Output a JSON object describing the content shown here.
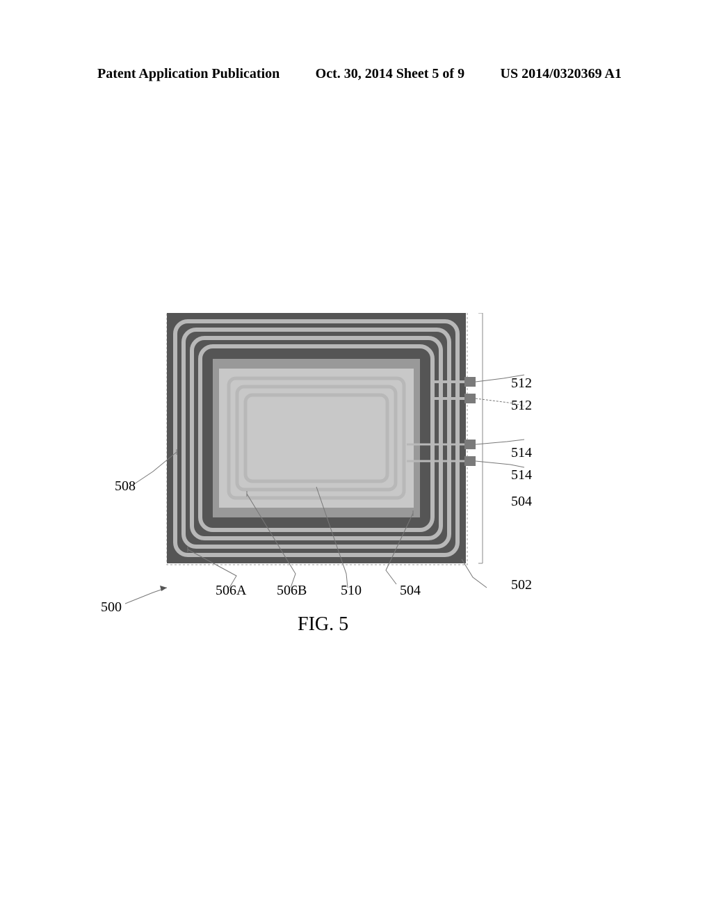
{
  "header": {
    "left": "Patent Application Publication",
    "middle": "Oct. 30, 2014  Sheet 5 of 9",
    "right": "US 2014/0320369 A1"
  },
  "figure": {
    "caption": "FIG. 5",
    "substrate_color": "#555555",
    "ferrite_color": "#999999",
    "coil_color": "#b8b8b8",
    "inner_color": "#c8c8c8",
    "terminal_color": "#7a7a7a",
    "outer_w": 430,
    "outer_h": 360,
    "outer_line_width": 6,
    "outer_gap": 6,
    "inner_rect_w": 280,
    "inner_rect_h": 200,
    "inner_coil_turns": 3,
    "inner_line_width": 5,
    "inner_gap": 7,
    "terminal_w": 16,
    "terminal_h": 14
  },
  "callouts": {
    "r512a": "512",
    "r512b": "512",
    "r514a": "514",
    "r514b": "514",
    "r504r": "504",
    "r502": "502",
    "l508": "508",
    "b506a": "506A",
    "b506b": "506B",
    "b510": "510",
    "b504": "504",
    "bl500": "500"
  }
}
